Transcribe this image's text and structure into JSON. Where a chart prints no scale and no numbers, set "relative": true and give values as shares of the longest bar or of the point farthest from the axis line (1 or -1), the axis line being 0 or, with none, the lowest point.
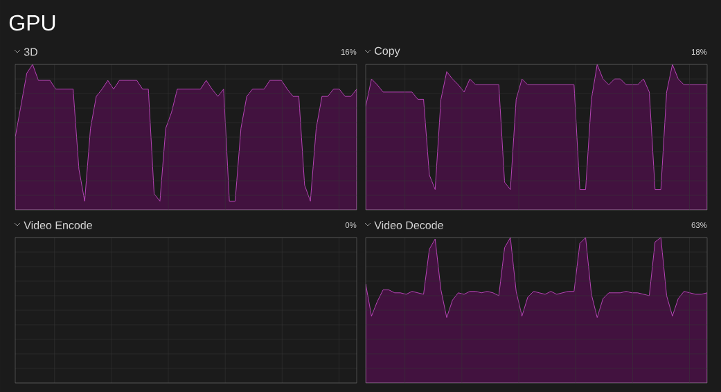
{
  "chart_data": [
    {
      "type": "area",
      "title": "3D",
      "annotations": [
        "GPU",
        "16%"
      ],
      "color": "#42123f",
      "grid": true,
      "relative": true,
      "categories": [
        null,
        null,
        null,
        null,
        null,
        null,
        null,
        null,
        null,
        null,
        null,
        null,
        null,
        null,
        null,
        null,
        null,
        null,
        null,
        null,
        null,
        null,
        null,
        null,
        null,
        null,
        null,
        null,
        null,
        null,
        null,
        null,
        null,
        null,
        null,
        null,
        null,
        null,
        null,
        null,
        null,
        null,
        null,
        null,
        null,
        null,
        null,
        null,
        null,
        null,
        null,
        null,
        null,
        null,
        null,
        null,
        null,
        null,
        null,
        null
      ],
      "values": [
        0.5,
        0.72,
        0.94,
        1,
        0.89,
        0.89,
        0.89,
        0.83,
        0.83,
        0.83,
        0.83,
        0.28,
        0.06,
        0.56,
        0.78,
        0.83,
        0.89,
        0.83,
        0.89,
        0.89,
        0.89,
        0.89,
        0.83,
        0.83,
        0.11,
        0.06,
        0.56,
        0.67,
        0.83,
        0.83,
        0.83,
        0.83,
        0.83,
        0.89,
        0.83,
        0.78,
        0.83,
        0.06,
        0.06,
        0.56,
        0.78,
        0.83,
        0.83,
        0.83,
        0.89,
        0.89,
        0.89,
        0.83,
        0.78,
        0.78,
        0.17,
        0.06,
        0.56,
        0.78,
        0.78,
        0.83,
        0.83,
        0.78,
        0.78,
        0.83
      ]
    },
    {
      "type": "area",
      "title": "Copy",
      "annotations": [
        "18%"
      ],
      "color": "#42123f",
      "grid": true,
      "relative": true,
      "categories": [
        null,
        null,
        null,
        null,
        null,
        null,
        null,
        null,
        null,
        null,
        null,
        null,
        null,
        null,
        null,
        null,
        null,
        null,
        null,
        null,
        null,
        null,
        null,
        null,
        null,
        null,
        null,
        null,
        null,
        null,
        null,
        null,
        null,
        null,
        null,
        null,
        null,
        null,
        null,
        null,
        null,
        null,
        null,
        null,
        null,
        null,
        null,
        null,
        null,
        null,
        null,
        null,
        null,
        null,
        null,
        null,
        null,
        null,
        null,
        null
      ],
      "values": [
        0.71,
        0.9,
        0.86,
        0.81,
        0.81,
        0.81,
        0.81,
        0.81,
        0.81,
        0.76,
        0.76,
        0.24,
        0.14,
        0.76,
        0.95,
        0.9,
        0.86,
        0.81,
        0.9,
        0.86,
        0.86,
        0.86,
        0.86,
        0.86,
        0.19,
        0.14,
        0.76,
        0.9,
        0.86,
        0.86,
        0.86,
        0.86,
        0.86,
        0.86,
        0.86,
        0.86,
        0.86,
        0.14,
        0.14,
        0.76,
        1,
        0.9,
        0.86,
        0.9,
        0.9,
        0.86,
        0.86,
        0.86,
        0.9,
        0.81,
        0.14,
        0.14,
        0.81,
        1,
        0.9,
        0.86,
        0.86,
        0.86,
        0.86,
        0.86
      ]
    },
    {
      "type": "other",
      "title": "Video Encode",
      "annotations": [
        "0%"
      ]
    },
    {
      "type": "area",
      "title": "Video Decode",
      "annotations": [
        "63%"
      ],
      "color": "#42123f",
      "grid": true,
      "relative": true,
      "categories": [
        null,
        null,
        null,
        null,
        null,
        null,
        null,
        null,
        null,
        null,
        null,
        null,
        null,
        null,
        null,
        null,
        null,
        null,
        null,
        null,
        null,
        null,
        null,
        null,
        null,
        null,
        null,
        null,
        null,
        null,
        null,
        null,
        null,
        null,
        null,
        null,
        null,
        null,
        null,
        null,
        null,
        null,
        null,
        null,
        null,
        null,
        null,
        null,
        null,
        null,
        null,
        null,
        null,
        null,
        null,
        null,
        null,
        null,
        null,
        null
      ],
      "values": [
        0.68,
        0.46,
        0.56,
        0.64,
        0.64,
        0.62,
        0.62,
        0.61,
        0.63,
        0.62,
        0.61,
        0.92,
        0.99,
        0.64,
        0.45,
        0.57,
        0.62,
        0.61,
        0.63,
        0.63,
        0.62,
        0.63,
        0.62,
        0.6,
        0.93,
        1,
        0.63,
        0.46,
        0.59,
        0.63,
        0.62,
        0.61,
        0.63,
        0.61,
        0.62,
        0.63,
        0.63,
        0.96,
        1,
        0.61,
        0.45,
        0.58,
        0.62,
        0.62,
        0.62,
        0.63,
        0.62,
        0.62,
        0.61,
        0.6,
        0.97,
        1,
        0.6,
        0.46,
        0.58,
        0.63,
        0.62,
        0.61,
        0.61,
        0.62
      ]
    }
  ]
}
